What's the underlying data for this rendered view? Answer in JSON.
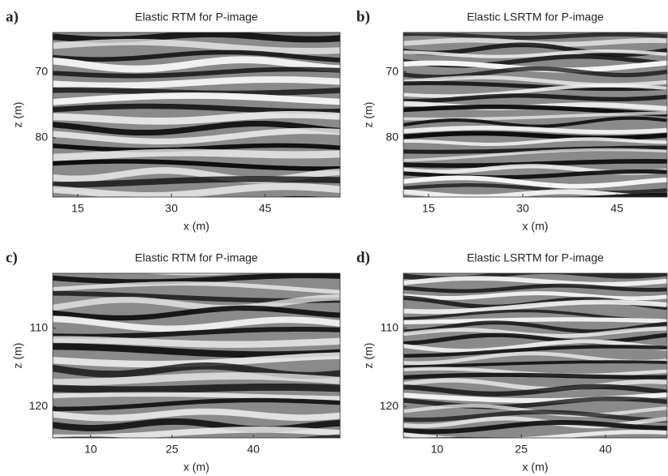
{
  "chart_data": [
    {
      "type": "image",
      "panel_label": "a)",
      "title": "Elastic RTM for P-image",
      "x_label": "x (m)",
      "y_label": "z (m)",
      "xlim": [
        11,
        57
      ],
      "ylim": [
        64,
        89
      ],
      "y_reversed": true,
      "xticks": [
        15,
        30,
        45
      ],
      "yticks": [
        70,
        80
      ]
    },
    {
      "type": "image",
      "panel_label": "b)",
      "title": "Elastic LSRTM for P-image",
      "x_label": "x (m)",
      "y_label": "z (m)",
      "xlim": [
        11,
        53
      ],
      "ylim": [
        64,
        89
      ],
      "y_reversed": true,
      "xticks": [
        15,
        30,
        45
      ],
      "yticks": [
        70,
        80
      ]
    },
    {
      "type": "image",
      "panel_label": "c)",
      "title": "Elastic RTM for P-image",
      "x_label": "x (m)",
      "y_label": "z (m)",
      "xlim": [
        3,
        56
      ],
      "ylim": [
        103,
        124
      ],
      "y_reversed": true,
      "xticks": [
        10,
        25,
        40
      ],
      "yticks": [
        110,
        120
      ]
    },
    {
      "type": "image",
      "panel_label": "d)",
      "title": "Elastic LSRTM for P-image",
      "x_label": "x (m)",
      "y_label": "z (m)",
      "xlim": [
        4,
        51
      ],
      "ylim": [
        103,
        124
      ],
      "y_reversed": true,
      "xticks": [
        10,
        25,
        40
      ],
      "yticks": [
        110,
        120
      ]
    }
  ]
}
